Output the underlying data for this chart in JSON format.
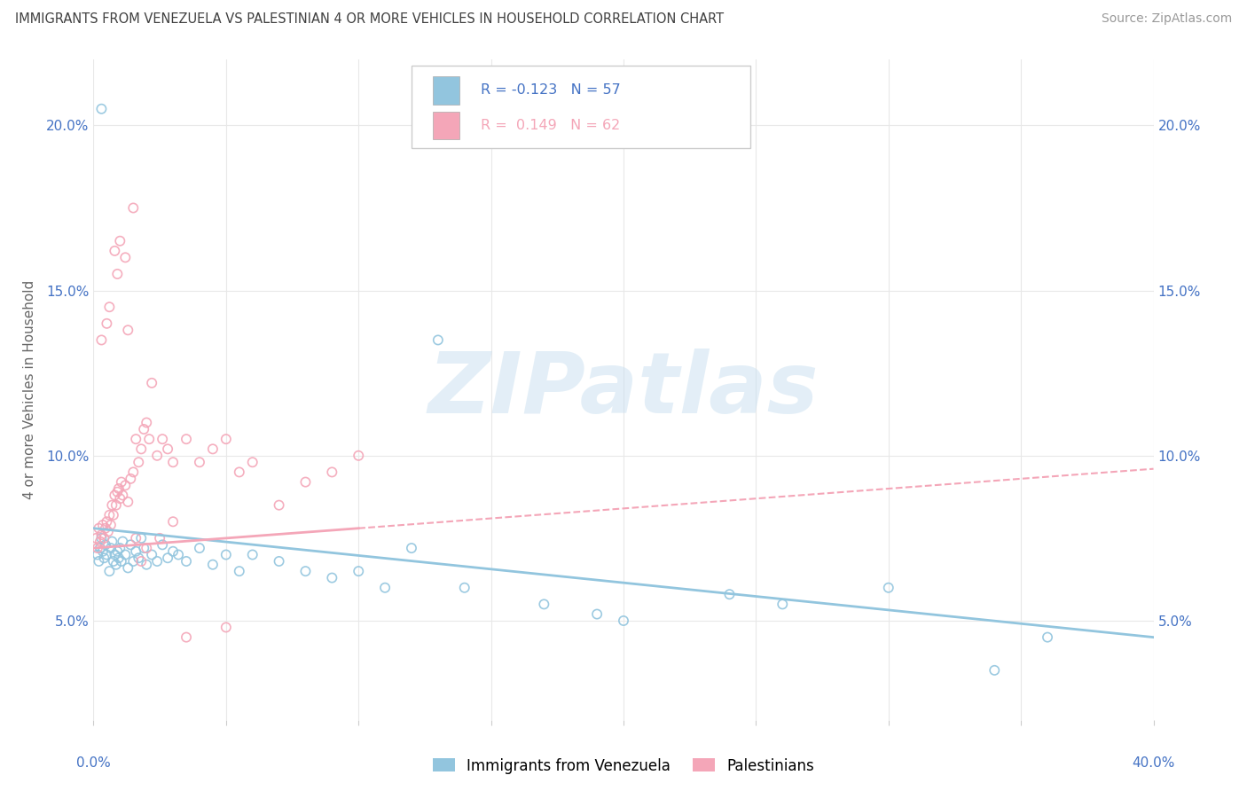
{
  "title": "IMMIGRANTS FROM VENEZUELA VS PALESTINIAN 4 OR MORE VEHICLES IN HOUSEHOLD CORRELATION CHART",
  "source": "Source: ZipAtlas.com",
  "ylabel": "4 or more Vehicles in Household",
  "xlim": [
    0.0,
    40.0
  ],
  "ylim": [
    2.0,
    22.0
  ],
  "yticks": [
    5.0,
    10.0,
    15.0,
    20.0
  ],
  "legend_label1": "Immigrants from Venezuela",
  "legend_label2": "Palestinians",
  "legend_r1": "R = -0.123",
  "legend_n1": "N = 57",
  "legend_r2": "R =  0.149",
  "legend_n2": "N = 62",
  "blue_color": "#92c5de",
  "pink_color": "#f4a6b8",
  "axis_label_color": "#4472c4",
  "grid_color": "#e8e8e8",
  "title_color": "#404040",
  "source_color": "#999999",
  "ylabel_color": "#666666",
  "watermark_text": "ZIPatlas",
  "watermark_color": "#c8dff0",
  "blue_trend": [
    7.8,
    4.5
  ],
  "pink_solid_trend": [
    7.2,
    9.6
  ],
  "pink_dash_trend_end": 13.5,
  "blue_scatter_x": [
    0.15,
    0.2,
    0.25,
    0.3,
    0.35,
    0.4,
    0.45,
    0.5,
    0.6,
    0.65,
    0.7,
    0.75,
    0.8,
    0.85,
    0.9,
    0.95,
    1.0,
    1.05,
    1.1,
    1.2,
    1.3,
    1.4,
    1.5,
    1.6,
    1.7,
    1.8,
    1.9,
    2.0,
    2.2,
    2.4,
    2.6,
    2.8,
    3.0,
    3.2,
    3.5,
    4.0,
    4.5,
    5.0,
    5.5,
    6.0,
    7.0,
    8.0,
    9.0,
    10.0,
    11.0,
    12.0,
    14.0,
    17.0,
    19.0,
    20.0,
    24.0,
    26.0,
    30.0,
    34.0,
    36.0,
    0.3,
    13.0
  ],
  "blue_scatter_y": [
    7.0,
    6.8,
    7.2,
    7.5,
    7.1,
    6.9,
    7.3,
    7.0,
    6.5,
    7.2,
    7.4,
    6.8,
    7.0,
    6.7,
    7.1,
    6.9,
    7.2,
    6.8,
    7.4,
    7.0,
    6.6,
    7.3,
    6.8,
    7.1,
    6.9,
    7.5,
    7.2,
    6.7,
    7.0,
    6.8,
    7.3,
    6.9,
    7.1,
    7.0,
    6.8,
    7.2,
    6.7,
    7.0,
    6.5,
    7.0,
    6.8,
    6.5,
    6.3,
    6.5,
    6.0,
    7.2,
    6.0,
    5.5,
    5.2,
    5.0,
    5.8,
    5.5,
    6.0,
    3.5,
    4.5,
    20.5,
    13.5
  ],
  "pink_scatter_x": [
    0.1,
    0.15,
    0.2,
    0.25,
    0.3,
    0.35,
    0.4,
    0.45,
    0.5,
    0.55,
    0.6,
    0.65,
    0.7,
    0.75,
    0.8,
    0.85,
    0.9,
    0.95,
    1.0,
    1.05,
    1.1,
    1.2,
    1.3,
    1.4,
    1.5,
    1.6,
    1.7,
    1.8,
    1.9,
    2.0,
    2.1,
    2.2,
    2.4,
    2.6,
    2.8,
    3.0,
    3.5,
    4.0,
    4.5,
    5.0,
    5.5,
    6.0,
    7.0,
    8.0,
    9.0,
    10.0,
    0.5,
    0.9,
    1.0,
    1.2,
    1.5,
    0.3,
    0.6,
    0.8,
    1.3,
    1.6,
    1.8,
    2.0,
    2.5,
    3.0,
    3.5,
    5.0
  ],
  "pink_scatter_y": [
    7.5,
    7.2,
    7.8,
    7.4,
    7.6,
    7.9,
    7.5,
    7.8,
    8.0,
    7.7,
    8.2,
    7.9,
    8.5,
    8.2,
    8.8,
    8.5,
    8.9,
    9.0,
    8.7,
    9.2,
    8.8,
    9.1,
    8.6,
    9.3,
    9.5,
    10.5,
    9.8,
    10.2,
    10.8,
    11.0,
    10.5,
    12.2,
    10.0,
    10.5,
    10.2,
    9.8,
    10.5,
    9.8,
    10.2,
    10.5,
    9.5,
    9.8,
    8.5,
    9.2,
    9.5,
    10.0,
    14.0,
    15.5,
    16.5,
    16.0,
    17.5,
    13.5,
    14.5,
    16.2,
    13.8,
    7.5,
    6.8,
    7.2,
    7.5,
    8.0,
    4.5,
    4.8
  ]
}
